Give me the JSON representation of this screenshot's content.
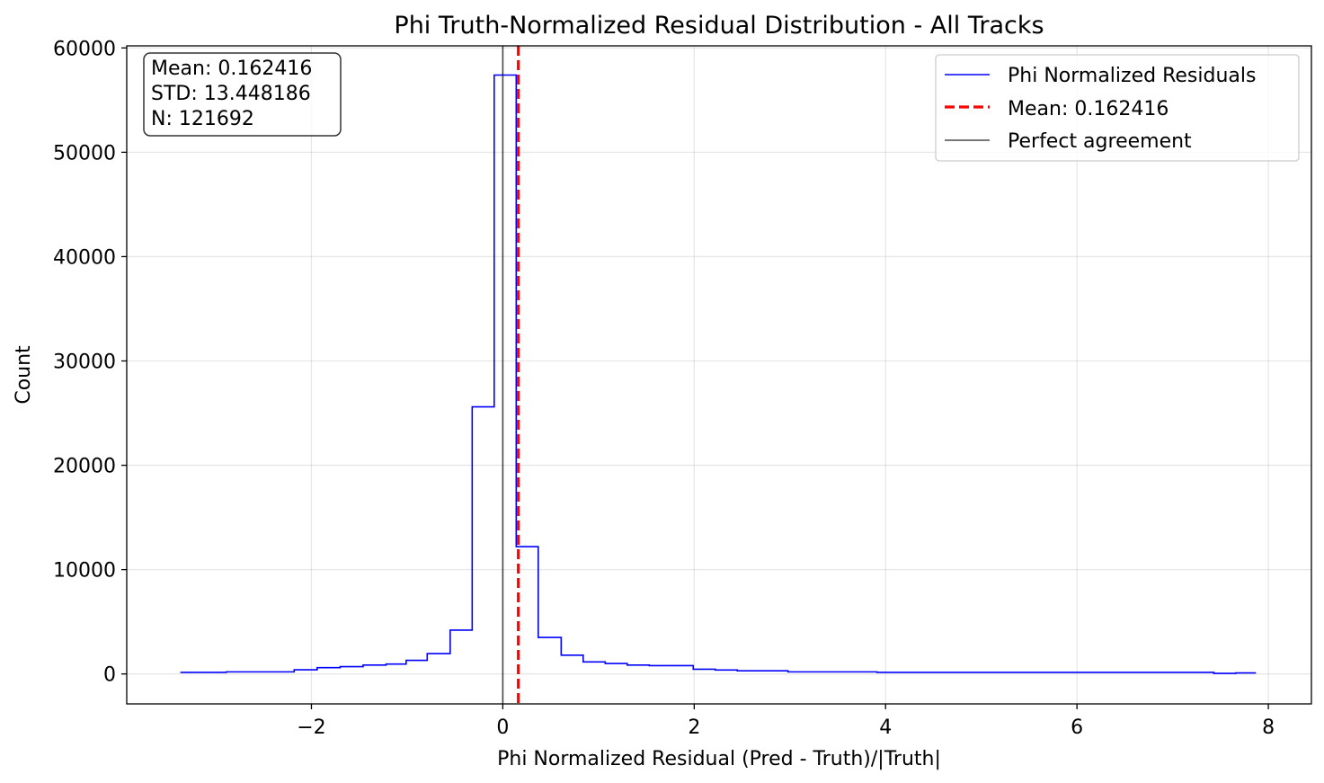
{
  "chart_data": {
    "type": "histogram",
    "title": "Phi Truth-Normalized Residual Distribution - All Tracks",
    "xlabel": "Phi Normalized Residual (Pred - Truth)/|Truth|",
    "ylabel": "Count",
    "xlim": [
      -3.93,
      8.45
    ],
    "ylim": [
      -2870,
      60200
    ],
    "x_ticks": [
      -2,
      0,
      2,
      4,
      6,
      8
    ],
    "x_tick_labels": [
      "−2",
      "0",
      "2",
      "4",
      "6",
      "8"
    ],
    "y_ticks": [
      0,
      10000,
      20000,
      30000,
      40000,
      50000,
      60000
    ],
    "y_tick_labels": [
      "0",
      "10000",
      "20000",
      "30000",
      "40000",
      "50000",
      "60000"
    ],
    "grid": true,
    "series": [
      {
        "name": "Phi Normalized Residuals",
        "color": "#0000ff",
        "style": "step",
        "bin_edges": [
          -3.37,
          -2.89,
          -2.18,
          -1.94,
          -1.7,
          -1.46,
          -1.22,
          -1.01,
          -0.79,
          -0.55,
          -0.32,
          -0.09,
          0.14,
          0.37,
          0.61,
          0.84,
          1.07,
          1.3,
          1.53,
          1.99,
          2.22,
          2.45,
          2.98,
          3.91,
          7.43,
          7.66,
          7.87
        ],
        "counts": [
          150,
          200,
          400,
          600,
          700,
          850,
          950,
          1300,
          1950,
          4200,
          25600,
          57400,
          12200,
          3500,
          1800,
          1150,
          1000,
          850,
          800,
          450,
          380,
          300,
          200,
          150,
          50,
          100
        ]
      }
    ],
    "reference_lines": [
      {
        "name": "Mean: 0.162416",
        "x": 0.162416,
        "color": "#ff0000",
        "style": "dashed"
      },
      {
        "name": "Perfect agreement",
        "x": 0,
        "color": "#000000",
        "style": "solid"
      }
    ],
    "stats_box": {
      "lines": [
        "Mean: 0.162416",
        "STD: 13.448186",
        "N: 121692"
      ]
    },
    "legend": {
      "position": "upper right",
      "entries": [
        "Phi Normalized Residuals",
        "Mean: 0.162416",
        "Perfect agreement"
      ]
    }
  }
}
